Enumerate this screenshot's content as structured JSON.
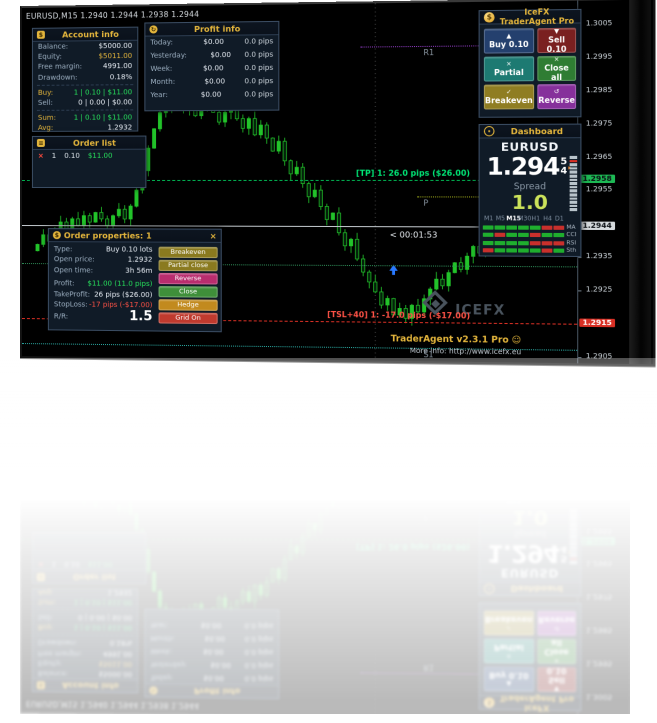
{
  "ohlc_title": "EURUSD,M15 1.2940 1.2944 1.2938 1.2944",
  "countdown": "< 00:01:53",
  "icons": {
    "dollar": "$",
    "cross": "×",
    "check": "✓",
    "reverse": "↺",
    "up": "▲",
    "down": "▼",
    "list": "≡",
    "refresh": "↻",
    "smiley": "☺",
    "arrow": "►"
  },
  "account": {
    "title": "Account info",
    "rows": [
      {
        "label": "Balance:",
        "value": "$5000.00"
      },
      {
        "label": "Equity:",
        "value": "$5011.00"
      },
      {
        "label": "Free margin:",
        "value": "4991.00"
      },
      {
        "label": "Drawdown:",
        "value": "0.18%"
      }
    ],
    "buy": {
      "label": "Buy:",
      "value": "1 | 0.10 | $11.00"
    },
    "sell": {
      "label": "Sell:",
      "value": "0 | 0.00 | $0.00"
    },
    "sum": {
      "label": "Sum:",
      "value": "1 | 0.10 | $11.00"
    },
    "avg": {
      "label": "Avg:",
      "value": "1.2932"
    }
  },
  "profit": {
    "title": "Profit info",
    "rows": [
      {
        "label": "Today:",
        "usd": "$0.00",
        "pips": "0.0 pips"
      },
      {
        "label": "Yesterday:",
        "usd": "$0.00",
        "pips": "0.0 pips"
      },
      {
        "label": "Week:",
        "usd": "$0.00",
        "pips": "0.0 pips"
      },
      {
        "label": "Month:",
        "usd": "$0.00",
        "pips": "0.0 pips"
      },
      {
        "label": "Year:",
        "usd": "$0.00",
        "pips": "0.0 pips"
      }
    ]
  },
  "order_list": {
    "title": "Order list",
    "row": {
      "ticket": "1",
      "lots": "0.10",
      "profit": "$11.00"
    }
  },
  "order_props": {
    "title": "Order properties: 1",
    "rows": [
      {
        "label": "Type:",
        "value": "Buy 0.10 lots"
      },
      {
        "label": "Open price:",
        "value": "1.2932"
      },
      {
        "label": "Open time:",
        "value": "3h 56m"
      },
      {
        "label": "Profit:",
        "value": "$11.00 (11.0 pips)"
      },
      {
        "label": "TakeProfit:",
        "value": "26 pips ($26.00)"
      },
      {
        "label": "StopLoss:",
        "value": "-17 pips (-$17.00)"
      }
    ],
    "rr": {
      "label": "R/R:",
      "value": "1.5"
    },
    "buttons": [
      {
        "label": "Breakeven",
        "color": "#8a7a1f"
      },
      {
        "label": "Partial close",
        "color": "#8a7a1f"
      },
      {
        "label": "Reverse",
        "color": "#b92d6e"
      },
      {
        "label": "Close",
        "color": "#3f8f3a"
      },
      {
        "label": "Hedge",
        "color": "#c28a1e"
      },
      {
        "label": "Grid On",
        "color": "#c03a2e"
      }
    ]
  },
  "trade_panel": {
    "title": "IceFX TraderAgent Pro",
    "buttons": [
      {
        "glyph": "▲",
        "label": "Buy 0.10",
        "color": "#24406e"
      },
      {
        "glyph": "▼",
        "label": "Sell 0.10",
        "color": "#7a2020"
      },
      {
        "glyph": "×",
        "label": "Partial",
        "color": "#1d7a72"
      },
      {
        "glyph": "×",
        "label": "Close all",
        "color": "#2f7d33"
      },
      {
        "glyph": "✓",
        "label": "Breakeven",
        "color": "#8f7d22"
      },
      {
        "glyph": "↺",
        "label": "Reverse",
        "color": "#86309b"
      }
    ]
  },
  "dashboard": {
    "title": "Dashboard",
    "symbol": "EURUSD",
    "price_main": "1.294",
    "price_sup": "5",
    "price_sub": "4",
    "spread_label": "Spread",
    "spread_value": "1.0",
    "gauge": {
      "segments": 15,
      "red_index": 1
    },
    "matrix": {
      "columns": [
        "M1",
        "M5",
        "M15",
        "M30",
        "H1",
        "H4",
        "D1"
      ],
      "rows": [
        {
          "label": "MA",
          "cells": [
            "up",
            "up",
            "up",
            "up",
            "up",
            "down",
            "down"
          ]
        },
        {
          "label": "CCI",
          "cells": [
            "up",
            "down",
            "up",
            "up",
            "down",
            "up",
            "up"
          ]
        },
        {
          "label": "RSI",
          "cells": [
            "up",
            "up",
            "up",
            "up",
            "down",
            "down",
            "down"
          ]
        },
        {
          "label": "Sth",
          "cells": [
            "down",
            "up",
            "up",
            "up",
            "up",
            "down",
            "up"
          ]
        }
      ]
    }
  },
  "branding": {
    "line1": "TraderAgent v2.3.1 Pro",
    "line2": "More info: http://www.icefx.eu",
    "logo_text": "ICEFX"
  },
  "colors": {
    "up_cell": "#1fae2e",
    "down_cell": "#c9302c",
    "candle": "#22c32a",
    "accent_gold": "#e3b53c"
  },
  "chart_data": {
    "type": "candlestick",
    "symbol": "EURUSD",
    "timeframe": "M15",
    "ylim": [
      1.2903,
      1.3012
    ],
    "closes": [
      1.2938,
      1.2941,
      1.2939,
      1.2943,
      1.2945,
      1.2942,
      1.2946,
      1.2944,
      1.2947,
      1.2945,
      1.2948,
      1.2946,
      1.2944,
      1.2947,
      1.2949,
      1.2946,
      1.295,
      1.2955,
      1.2961,
      1.2968,
      1.2974,
      1.2979,
      1.2983,
      1.2981,
      1.2984,
      1.298,
      1.2983,
      1.2978,
      1.2981,
      1.2984,
      1.2979,
      1.2976,
      1.2979,
      1.2982,
      1.2977,
      1.2974,
      1.2977,
      1.2972,
      1.2975,
      1.2971,
      1.2967,
      1.297,
      1.2964,
      1.296,
      1.2962,
      1.2957,
      1.2953,
      1.2955,
      1.295,
      1.2946,
      1.2948,
      1.2942,
      1.2938,
      1.294,
      1.2934,
      1.293,
      1.2927,
      1.2924,
      1.292,
      1.2922,
      1.2917,
      1.2919,
      1.2916,
      1.292,
      1.2918,
      1.2922,
      1.2925,
      1.2928,
      1.2926,
      1.293,
      1.2933,
      1.2931,
      1.2935,
      1.2938,
      1.2936,
      1.294,
      1.2942,
      1.2939,
      1.2943,
      1.2944
    ],
    "current_price": 1.2944,
    "open_trade_price": 1.2932,
    "buy_marker": {
      "index": 60,
      "price": 1.2932
    },
    "separator_index": 57,
    "lines": [
      {
        "id": "r1",
        "price": 1.2999,
        "style": "dashdot",
        "color": "#8c3bbf",
        "from": 0.62,
        "label": "R1"
      },
      {
        "id": "tp",
        "price": 1.2958,
        "style": "dash",
        "color": "#00b050",
        "from": 0,
        "label": "[TP] 1: 26.0 pips ($26.00)",
        "label_color": "#00e676"
      },
      {
        "id": "pivot",
        "price": 1.2953,
        "style": "dashdot",
        "color": "#9aa51a",
        "from": 0.72,
        "label": "P"
      },
      {
        "id": "bid",
        "price": 1.2944,
        "style": "solid",
        "color": "#c2c8cd",
        "from": 0
      },
      {
        "id": "open",
        "price": 1.2932,
        "style": "dashdot",
        "color": "#2e8b57",
        "from": 0
      },
      {
        "id": "tsl",
        "price": 1.2915,
        "style": "dash",
        "color": "#d93025",
        "from": 0,
        "label": "[TSL+40] 1: -17.0 pips (-$17.00)",
        "label_color": "#ff5246"
      },
      {
        "id": "s1",
        "price": 1.2907,
        "style": "dashdot",
        "color": "#2aa7a0",
        "from": 0,
        "label": "S1"
      }
    ],
    "axis_ticks": [
      "1.3005",
      "1.2995",
      "1.2985",
      "1.2975",
      "1.2965",
      "1.2955",
      "1.2935",
      "1.2925",
      "1.2905"
    ],
    "axis_badges": [
      {
        "text": "1.2958",
        "price": 1.2958,
        "color": "#1db954",
        "dark_text": true
      },
      {
        "text": "1.2944",
        "price": 1.2944,
        "color": "#d6dadd",
        "dark_text": true
      },
      {
        "text": "1.2915",
        "price": 1.2915,
        "color": "#d93025",
        "dark_text": false
      }
    ]
  }
}
